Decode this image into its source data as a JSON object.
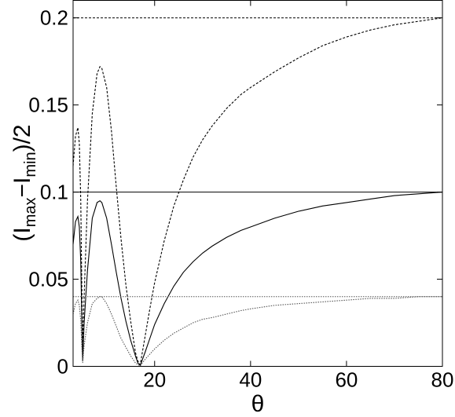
{
  "chart_data": {
    "type": "line",
    "title": "",
    "xlabel": "θ",
    "ylabel_parts": {
      "open": "(I",
      "sub1": "max",
      "mid": "−I",
      "sub2": "min",
      "close": ")/2"
    },
    "xlim": [
      3,
      80
    ],
    "ylim": [
      0,
      0.21
    ],
    "x_ticks": [
      20,
      40,
      60,
      80
    ],
    "y_ticks": [
      0,
      0.05,
      0.1,
      0.15,
      0.2
    ],
    "x_tick_labels": [
      "20",
      "40",
      "60",
      "80"
    ],
    "y_tick_labels": [
      "0",
      "0.05",
      "0.1",
      "0.15",
      "0.2"
    ],
    "grid": false,
    "legend": "none",
    "series": [
      {
        "style": "dashed",
        "color": "#000000",
        "asymptote": 0.2,
        "x": [
          3,
          3.5,
          4,
          4.3,
          4.6,
          4.8,
          5,
          5.3,
          6,
          7,
          8,
          8.6,
          9,
          10,
          11,
          12,
          13,
          14,
          15,
          16,
          16.5,
          17,
          18,
          19,
          20,
          22,
          24,
          26,
          28,
          30,
          32,
          35,
          38,
          40,
          45,
          50,
          55,
          60,
          65,
          70,
          75,
          80
        ],
        "y": [
          0.115,
          0.132,
          0.137,
          0.128,
          0.095,
          0.05,
          0.01,
          0.04,
          0.095,
          0.145,
          0.168,
          0.172,
          0.171,
          0.16,
          0.135,
          0.103,
          0.073,
          0.047,
          0.026,
          0.008,
          0.003,
          0.001,
          0.017,
          0.033,
          0.048,
          0.072,
          0.092,
          0.107,
          0.12,
          0.13,
          0.138,
          0.148,
          0.156,
          0.16,
          0.169,
          0.177,
          0.184,
          0.189,
          0.193,
          0.196,
          0.198,
          0.2
        ]
      },
      {
        "style": "solid",
        "color": "#000000",
        "asymptote": 0.1,
        "x": [
          3,
          3.5,
          4,
          4.3,
          4.6,
          4.8,
          5,
          5.3,
          6,
          7,
          8,
          8.6,
          9,
          10,
          11,
          12,
          13,
          14,
          15,
          16,
          16.5,
          17,
          18,
          19,
          20,
          22,
          24,
          26,
          28,
          30,
          32,
          35,
          38,
          40,
          45,
          50,
          55,
          60,
          65,
          70,
          75,
          80
        ],
        "y": [
          0.07,
          0.083,
          0.086,
          0.08,
          0.06,
          0.03,
          0.003,
          0.025,
          0.055,
          0.085,
          0.094,
          0.095,
          0.094,
          0.085,
          0.07,
          0.054,
          0.039,
          0.026,
          0.015,
          0.006,
          0.002,
          0.0005,
          0.008,
          0.016,
          0.024,
          0.036,
          0.046,
          0.054,
          0.06,
          0.065,
          0.069,
          0.074,
          0.078,
          0.08,
          0.085,
          0.089,
          0.092,
          0.094,
          0.096,
          0.098,
          0.099,
          0.1
        ]
      },
      {
        "style": "dotted",
        "color": "#555555",
        "asymptote": 0.04,
        "x": [
          3,
          3.5,
          4,
          4.3,
          4.6,
          4.8,
          5,
          5.3,
          6,
          7,
          8,
          8.6,
          9,
          10,
          11,
          12,
          13,
          14,
          15,
          16,
          16.5,
          17,
          18,
          19,
          20,
          22,
          24,
          26,
          28,
          30,
          32,
          35,
          38,
          40,
          45,
          50,
          55,
          60,
          65,
          70,
          75,
          80
        ],
        "y": [
          0.03,
          0.036,
          0.038,
          0.035,
          0.026,
          0.012,
          0.002,
          0.012,
          0.025,
          0.036,
          0.039,
          0.04,
          0.04,
          0.036,
          0.03,
          0.023,
          0.016,
          0.011,
          0.006,
          0.002,
          0.001,
          0.0003,
          0.004,
          0.007,
          0.01,
          0.015,
          0.019,
          0.022,
          0.025,
          0.027,
          0.028,
          0.03,
          0.032,
          0.033,
          0.035,
          0.036,
          0.037,
          0.038,
          0.039,
          0.039,
          0.04,
          0.04
        ]
      }
    ]
  }
}
